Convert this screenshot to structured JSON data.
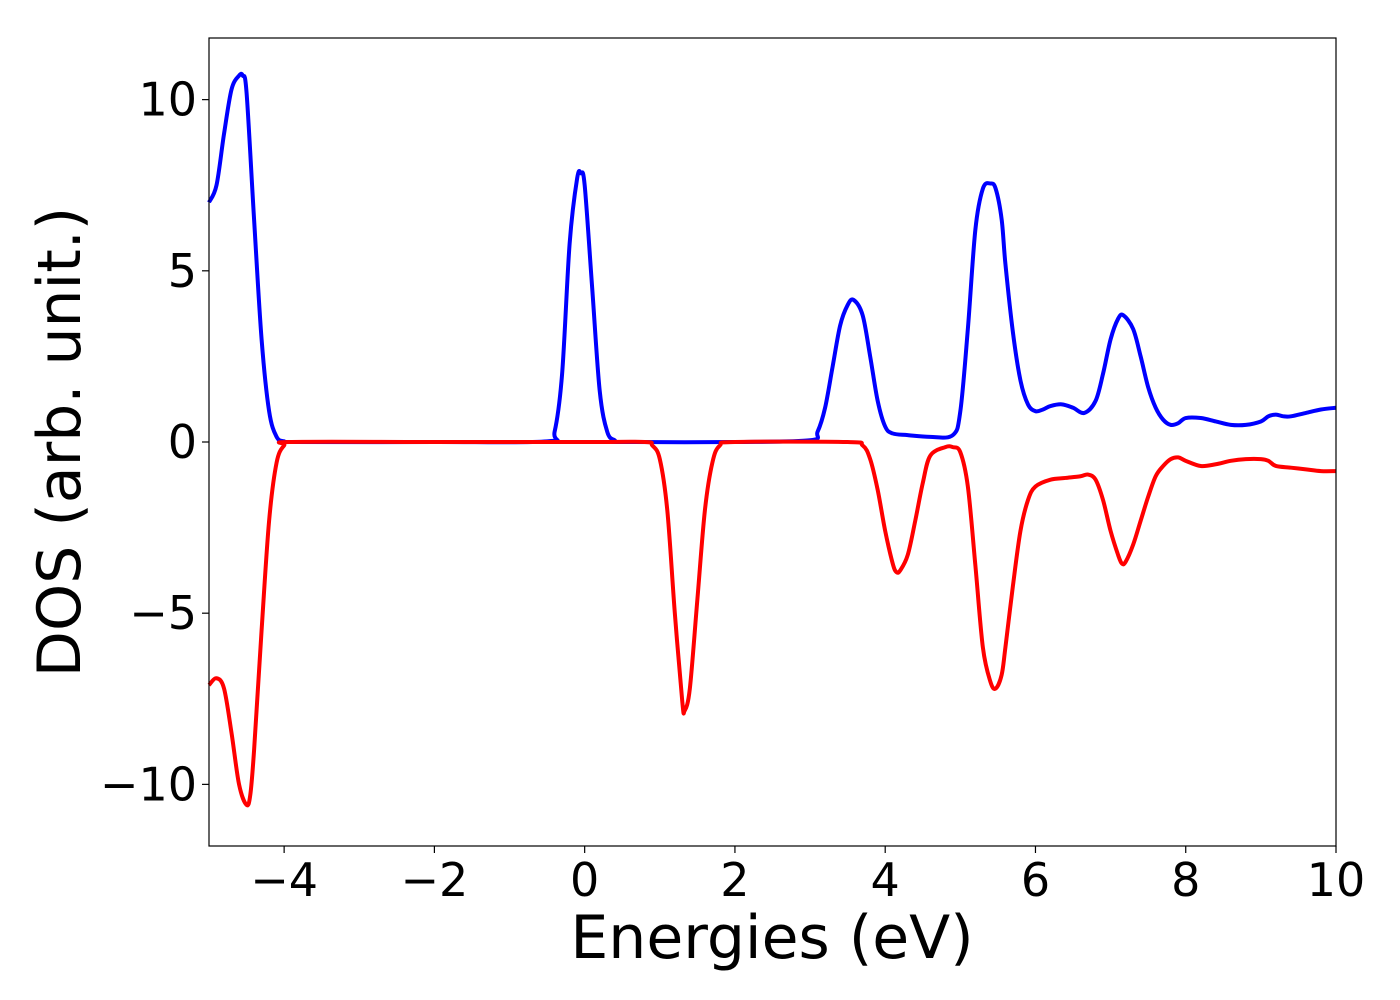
{
  "chart_data": {
    "type": "line",
    "title": "",
    "xlabel": "Energies (eV)",
    "ylabel": "DOS (arb. unit.)",
    "xlim": [
      -5,
      10
    ],
    "ylim": [
      -11.8,
      11.8
    ],
    "xticks": [
      -4,
      -2,
      0,
      2,
      4,
      6,
      8,
      10
    ],
    "xtick_labels": [
      "−4",
      "−2",
      "0",
      "2",
      "4",
      "6",
      "8",
      "10"
    ],
    "yticks": [
      10,
      5,
      0,
      -5,
      -10
    ],
    "ytick_labels": [
      "10",
      "5",
      "0",
      "−5",
      "−10"
    ],
    "grid": false,
    "legend": "none",
    "series": [
      {
        "color": "#0000ff",
        "x": [
          -5.0,
          -4.9,
          -4.8,
          -4.7,
          -4.6,
          -4.55,
          -4.5,
          -4.4,
          -4.3,
          -4.2,
          -4.1,
          -4.0,
          -3.9,
          -2.0,
          -0.5,
          -0.4,
          -0.3,
          -0.2,
          -0.1,
          -0.05,
          0.0,
          0.1,
          0.2,
          0.3,
          0.4,
          0.5,
          2.0,
          3.0,
          3.1,
          3.2,
          3.3,
          3.4,
          3.5,
          3.58,
          3.7,
          3.8,
          3.9,
          4.0,
          4.1,
          4.3,
          4.6,
          4.9,
          5.0,
          5.1,
          5.2,
          5.3,
          5.4,
          5.47,
          5.55,
          5.6,
          5.7,
          5.8,
          5.9,
          6.0,
          6.1,
          6.2,
          6.35,
          6.5,
          6.65,
          6.8,
          6.9,
          7.0,
          7.1,
          7.17,
          7.3,
          7.4,
          7.5,
          7.6,
          7.7,
          7.8,
          7.9,
          8.0,
          8.2,
          8.4,
          8.6,
          8.8,
          9.0,
          9.1,
          9.2,
          9.3,
          9.4,
          9.6,
          9.8,
          10.0
        ],
        "y": [
          7.0,
          7.5,
          9.0,
          10.3,
          10.7,
          10.7,
          10.2,
          6.5,
          3.0,
          0.9,
          0.15,
          0.02,
          0.0,
          0.0,
          0.02,
          0.3,
          2.0,
          5.8,
          7.7,
          7.85,
          7.5,
          4.5,
          1.5,
          0.3,
          0.05,
          0.0,
          0.0,
          0.05,
          0.3,
          1.0,
          2.2,
          3.4,
          4.0,
          4.15,
          3.7,
          2.5,
          1.2,
          0.45,
          0.25,
          0.2,
          0.15,
          0.2,
          0.9,
          3.3,
          6.2,
          7.4,
          7.55,
          7.4,
          6.5,
          5.2,
          3.2,
          1.8,
          1.1,
          0.9,
          0.95,
          1.05,
          1.1,
          1.0,
          0.85,
          1.2,
          2.0,
          3.0,
          3.6,
          3.7,
          3.3,
          2.5,
          1.6,
          1.0,
          0.65,
          0.5,
          0.55,
          0.7,
          0.7,
          0.6,
          0.5,
          0.5,
          0.6,
          0.75,
          0.8,
          0.75,
          0.75,
          0.85,
          0.95,
          1.0
        ]
      },
      {
        "color": "#ff0000",
        "x": [
          -5.0,
          -4.9,
          -4.8,
          -4.7,
          -4.6,
          -4.5,
          -4.45,
          -4.4,
          -4.3,
          -4.2,
          -4.1,
          -4.0,
          -3.9,
          -2.0,
          0.0,
          0.8,
          0.9,
          1.0,
          1.1,
          1.2,
          1.3,
          1.33,
          1.4,
          1.5,
          1.6,
          1.7,
          1.8,
          2.0,
          3.5,
          3.7,
          3.8,
          3.9,
          4.0,
          4.1,
          4.15,
          4.2,
          4.3,
          4.4,
          4.5,
          4.6,
          4.8,
          4.9,
          5.0,
          5.1,
          5.2,
          5.3,
          5.4,
          5.47,
          5.55,
          5.6,
          5.7,
          5.8,
          5.9,
          6.0,
          6.2,
          6.4,
          6.6,
          6.7,
          6.8,
          6.9,
          7.0,
          7.1,
          7.15,
          7.2,
          7.3,
          7.4,
          7.5,
          7.6,
          7.7,
          7.8,
          7.9,
          8.0,
          8.2,
          8.4,
          8.6,
          8.8,
          9.0,
          9.1,
          9.2,
          9.4,
          9.6,
          9.8,
          10.0
        ],
        "y": [
          -7.1,
          -6.9,
          -7.2,
          -8.5,
          -10.0,
          -10.6,
          -10.3,
          -9.0,
          -5.5,
          -2.3,
          -0.6,
          -0.1,
          0.0,
          0.0,
          0.0,
          0.0,
          -0.1,
          -0.5,
          -2.0,
          -5.0,
          -7.6,
          -7.85,
          -7.2,
          -4.6,
          -2.0,
          -0.6,
          -0.1,
          0.0,
          0.0,
          -0.1,
          -0.5,
          -1.4,
          -2.6,
          -3.55,
          -3.8,
          -3.75,
          -3.3,
          -2.3,
          -1.2,
          -0.4,
          -0.15,
          -0.15,
          -0.3,
          -1.3,
          -3.6,
          -6.0,
          -7.0,
          -7.2,
          -6.8,
          -6.0,
          -4.2,
          -2.6,
          -1.7,
          -1.3,
          -1.1,
          -1.05,
          -1.0,
          -0.95,
          -1.1,
          -1.7,
          -2.6,
          -3.3,
          -3.55,
          -3.5,
          -3.0,
          -2.3,
          -1.6,
          -1.0,
          -0.7,
          -0.5,
          -0.45,
          -0.55,
          -0.7,
          -0.65,
          -0.55,
          -0.5,
          -0.5,
          -0.55,
          -0.7,
          -0.75,
          -0.8,
          -0.85,
          -0.85
        ]
      }
    ]
  }
}
